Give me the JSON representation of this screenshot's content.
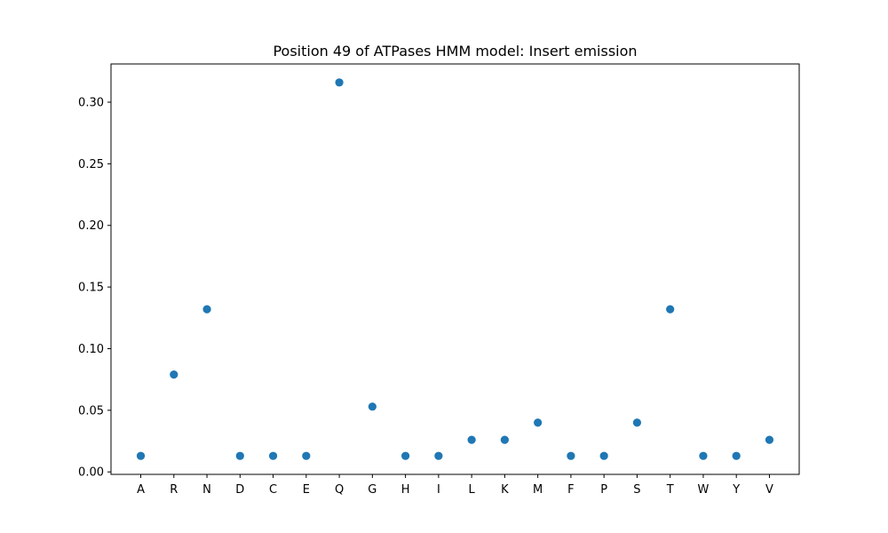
{
  "chart_data": {
    "type": "scatter",
    "title": "Position 49 of ATPases HMM model: Insert emission",
    "xlabel": "",
    "ylabel": "",
    "categories": [
      "A",
      "R",
      "N",
      "D",
      "C",
      "E",
      "Q",
      "G",
      "H",
      "I",
      "L",
      "K",
      "M",
      "F",
      "P",
      "S",
      "T",
      "W",
      "Y",
      "V"
    ],
    "values": [
      0.013,
      0.079,
      0.132,
      0.013,
      0.013,
      0.013,
      0.316,
      0.053,
      0.013,
      0.013,
      0.026,
      0.026,
      0.04,
      0.013,
      0.013,
      0.04,
      0.132,
      0.013,
      0.013,
      0.026
    ],
    "ylim": [
      -0.002,
      0.331
    ],
    "yticks": [
      "0.00",
      "0.05",
      "0.10",
      "0.15",
      "0.20",
      "0.25",
      "0.30"
    ],
    "grid": false,
    "marker_color": "#1f77b4"
  }
}
